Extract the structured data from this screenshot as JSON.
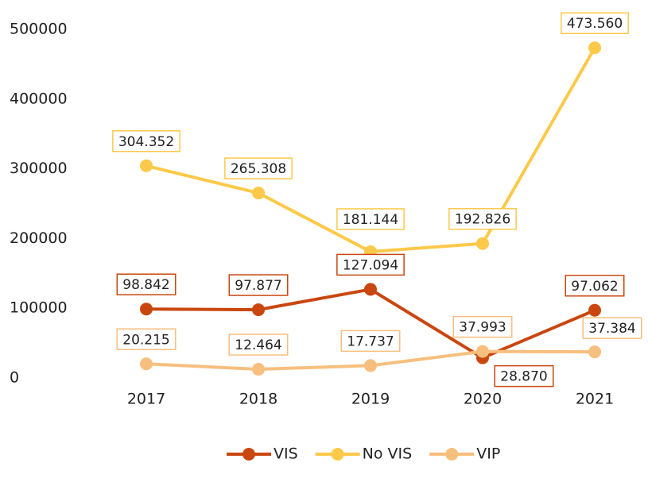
{
  "chart_data": {
    "type": "line",
    "categories": [
      "2017",
      "2018",
      "2019",
      "2020",
      "2021"
    ],
    "series": [
      {
        "name": "VIS",
        "color": "#c9470f",
        "values": [
          98842,
          97877,
          127094,
          28870,
          97062
        ],
        "value_labels": [
          "98.842",
          "97.877",
          "127.094",
          "28.870",
          "97.062"
        ]
      },
      {
        "name": "No VIS",
        "color": "#fdc94a",
        "values": [
          304352,
          265308,
          181144,
          192826,
          473560
        ],
        "value_labels": [
          "304.352",
          "265.308",
          "181.144",
          "192.826",
          "473.560"
        ]
      },
      {
        "name": "VIP",
        "color": "#f7bf7e",
        "values": [
          20215,
          12464,
          17737,
          37993,
          37384
        ],
        "value_labels": [
          "20.215",
          "12.464",
          "17.737",
          "37.993",
          "37.384"
        ]
      }
    ],
    "ylim": [
      0,
      500000
    ],
    "yticks": [
      0,
      100000,
      200000,
      300000,
      400000,
      500000
    ],
    "grid": false,
    "legend": "bottom"
  }
}
